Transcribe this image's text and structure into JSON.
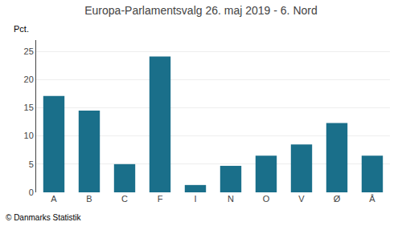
{
  "chart_data": {
    "type": "bar",
    "title": "Europa-Parlamentsvalg 26. maj 2019 - 6. Nord",
    "categories": [
      "A",
      "B",
      "C",
      "F",
      "I",
      "N",
      "O",
      "V",
      "Ø",
      "Å"
    ],
    "values": [
      17.1,
      14.5,
      5.0,
      24.1,
      1.3,
      4.7,
      6.5,
      8.5,
      12.3,
      6.5
    ],
    "color": "#1a6f8a",
    "ylim": [
      0,
      27
    ],
    "yticks": [
      0,
      5,
      10,
      15,
      20,
      25
    ],
    "grid": true,
    "ylabel": "Pct.",
    "annotations": [
      "© Danmarks Statistik"
    ]
  }
}
